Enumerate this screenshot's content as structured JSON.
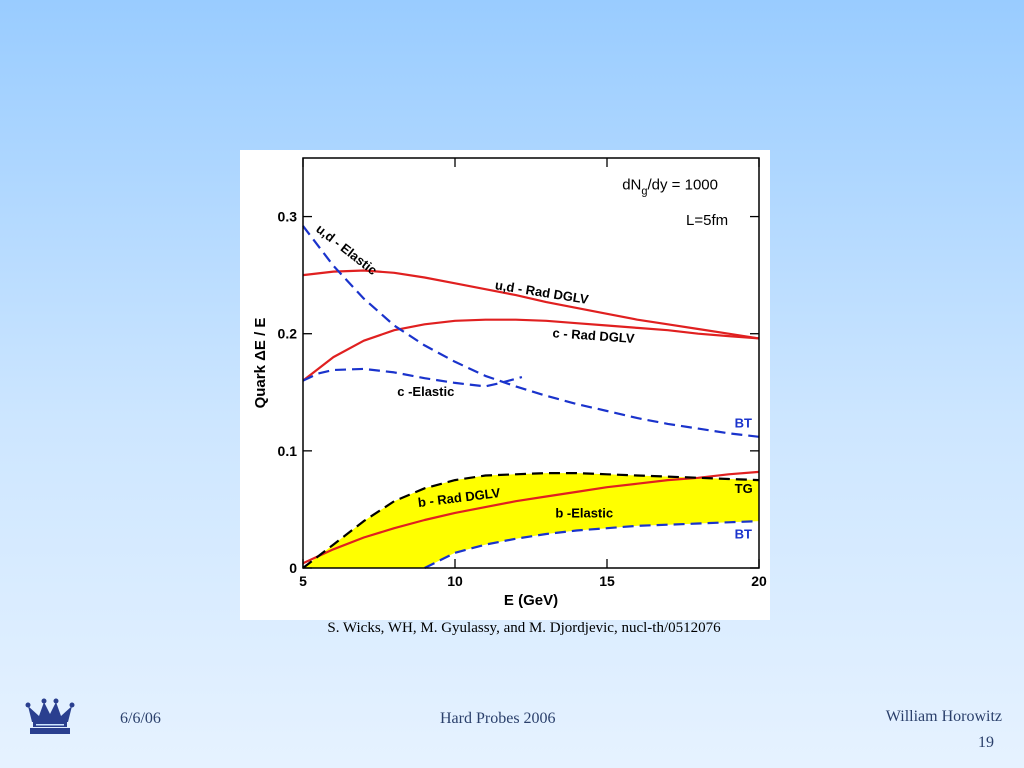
{
  "chart_data": {
    "type": "line",
    "xlabel": "E (GeV)",
    "ylabel": "Quark ΔE / E",
    "xlim": [
      5,
      20
    ],
    "ylim": [
      0,
      0.35
    ],
    "xticks": [
      5,
      10,
      15,
      20
    ],
    "yticks": [
      0,
      0.1,
      0.2,
      0.3
    ],
    "grid": false,
    "annotations": {
      "line1": "dN",
      "line1_sub": "g",
      "line1_rest": "/dy = 1000",
      "line2": "L=5fm"
    },
    "series": [
      {
        "name": "u,d - Rad DGLV",
        "style": "solid",
        "color": "#e02020",
        "x": [
          5,
          6,
          7,
          8,
          9,
          10,
          11,
          12,
          13,
          14,
          15,
          16,
          17,
          18,
          19,
          20
        ],
        "y": [
          0.25,
          0.253,
          0.254,
          0.252,
          0.248,
          0.243,
          0.238,
          0.233,
          0.227,
          0.222,
          0.217,
          0.212,
          0.208,
          0.204,
          0.2,
          0.196
        ]
      },
      {
        "name": "c - Rad DGLV",
        "style": "solid",
        "color": "#e02020",
        "x": [
          5,
          6,
          7,
          8,
          9,
          10,
          11,
          12,
          13,
          14,
          15,
          16,
          17,
          18,
          19,
          20
        ],
        "y": [
          0.16,
          0.18,
          0.194,
          0.203,
          0.208,
          0.211,
          0.212,
          0.212,
          0.211,
          0.209,
          0.207,
          0.205,
          0.203,
          0.2,
          0.198,
          0.196
        ]
      },
      {
        "name": "u,d - Elastic",
        "style": "dashed",
        "color": "#1a33cc",
        "x": [
          5,
          6,
          7,
          8,
          9,
          10,
          11,
          12,
          13,
          14,
          15,
          16,
          17,
          18,
          19,
          20
        ],
        "y": [
          0.292,
          0.258,
          0.23,
          0.207,
          0.19,
          0.176,
          0.164,
          0.155,
          0.147,
          0.14,
          0.134,
          0.128,
          0.123,
          0.119,
          0.115,
          0.112
        ]
      },
      {
        "name": "c -Elastic",
        "style": "dashed",
        "color": "#1a33cc",
        "x": [
          5,
          5.5,
          6,
          7,
          8,
          9,
          10,
          11,
          11.5,
          12.2
        ],
        "y": [
          0.16,
          0.166,
          0.169,
          0.17,
          0.167,
          0.162,
          0.158,
          0.155,
          0.158,
          0.163
        ]
      },
      {
        "name": "b - Rad DGLV",
        "style": "solid",
        "color": "#e02020",
        "x": [
          5,
          6,
          7,
          8,
          9,
          10,
          11,
          12,
          13,
          14,
          15,
          16,
          17,
          18,
          19,
          20
        ],
        "y": [
          0.004,
          0.016,
          0.026,
          0.034,
          0.041,
          0.047,
          0.052,
          0.057,
          0.061,
          0.065,
          0.069,
          0.072,
          0.075,
          0.077,
          0.08,
          0.082
        ]
      },
      {
        "name": "TG",
        "style": "dashed",
        "color": "#000000",
        "x": [
          5,
          6,
          7,
          8,
          9,
          10,
          11,
          12,
          13,
          14,
          15,
          16,
          17,
          18,
          19,
          20
        ],
        "y": [
          0.0,
          0.02,
          0.04,
          0.057,
          0.068,
          0.075,
          0.079,
          0.08,
          0.081,
          0.081,
          0.08,
          0.079,
          0.078,
          0.077,
          0.076,
          0.075
        ]
      },
      {
        "name": "BT",
        "style": "dashed",
        "color": "#1a33cc",
        "x": [
          9,
          10,
          11,
          12,
          13,
          14,
          15,
          16,
          17,
          18,
          19,
          20
        ],
        "y": [
          0.0,
          0.013,
          0.02,
          0.025,
          0.029,
          0.032,
          0.034,
          0.036,
          0.037,
          0.038,
          0.039,
          0.04
        ]
      }
    ],
    "labels": [
      {
        "text": "u,d - Elastic",
        "x": 5.4,
        "y": 0.288,
        "angle": 38,
        "color": "#000000"
      },
      {
        "text": "u,d - Rad DGLV",
        "x": 11.3,
        "y": 0.238,
        "angle": 9,
        "color": "#000000"
      },
      {
        "text": "c - Rad DGLV",
        "x": 13.2,
        "y": 0.197,
        "angle": 4,
        "color": "#000000"
      },
      {
        "text": "c -Elastic",
        "x": 8.1,
        "y": 0.147,
        "angle": 0,
        "color": "#000000"
      },
      {
        "text": "BT",
        "x": 19.2,
        "y": 0.12,
        "angle": 0,
        "color": "#1a33cc"
      },
      {
        "text": "b - Rad DGLV",
        "x": 8.8,
        "y": 0.052,
        "angle": -7,
        "color": "#000000"
      },
      {
        "text": "b -Elastic",
        "x": 13.3,
        "y": 0.043,
        "angle": 0,
        "color": "#000000"
      },
      {
        "text": "TG",
        "x": 19.2,
        "y": 0.064,
        "angle": 0,
        "color": "#000000"
      },
      {
        "text": "BT",
        "x": 19.2,
        "y": 0.025,
        "angle": 0,
        "color": "#1a33cc"
      }
    ]
  },
  "caption": "S. Wicks, WH, M. Gyulassy, and M. Djordjevic, nucl-th/0512076",
  "footer": {
    "date": "6/6/06",
    "conference": "Hard Probes 2006",
    "author": "William Horowitz",
    "page": "19"
  }
}
